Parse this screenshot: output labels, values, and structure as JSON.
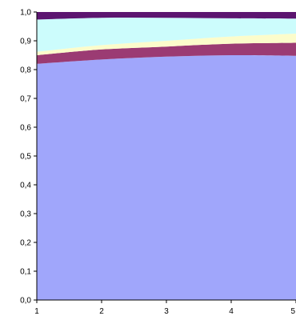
{
  "chart_data": {
    "type": "area",
    "stacked": true,
    "x": [
      1,
      2,
      3,
      4,
      5
    ],
    "x_tick_labels": [
      "1",
      "2",
      "3",
      "4",
      "5"
    ],
    "y_tick_labels": [
      "0,0",
      "0,1",
      "0,2",
      "0,3",
      "0,4",
      "0,5",
      "0,6",
      "0,7",
      "0,8",
      "0,9",
      "1,0"
    ],
    "ylim": [
      0,
      1
    ],
    "grid": false,
    "legend": "none",
    "series": [
      {
        "values": [
          0.82,
          0.835,
          0.845,
          0.85,
          0.848
        ],
        "color": "#a0a6fb"
      },
      {
        "values": [
          0.03,
          0.035,
          0.035,
          0.04,
          0.045
        ],
        "color": "#9b3b73"
      },
      {
        "values": [
          0.012,
          0.015,
          0.02,
          0.025,
          0.032
        ],
        "color": "#fcfccb"
      },
      {
        "values": [
          0.112,
          0.095,
          0.08,
          0.063,
          0.052
        ],
        "color": "#ccfcfc"
      },
      {
        "values": [
          0.026,
          0.02,
          0.02,
          0.022,
          0.023
        ],
        "color": "#5c1570"
      }
    ]
  }
}
